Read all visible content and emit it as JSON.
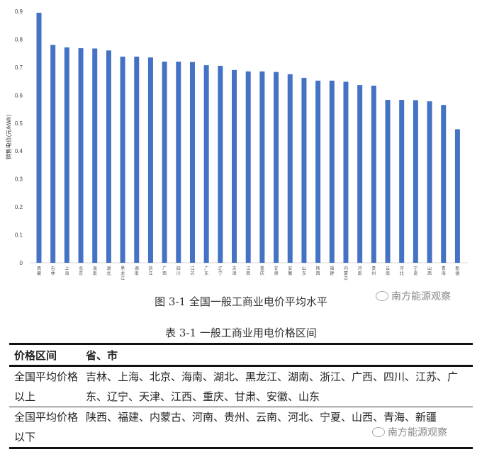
{
  "chart_data": {
    "type": "bar",
    "title": "",
    "xlabel": "",
    "ylabel": "销售电价(元/kWh)",
    "ylim": [
      0,
      0.9
    ],
    "yticks": [
      "0",
      "0.1",
      "0.2",
      "0.3",
      "0.4",
      "0.5",
      "0.6",
      "0.7",
      "0.8",
      "0.9"
    ],
    "grid": false,
    "color": "#4472c4",
    "categories": [
      "西藏",
      "吉林",
      "上海",
      "北京",
      "海南",
      "湖北",
      "黑龙江",
      "湖南",
      "浙江",
      "广西",
      "四川",
      "江苏",
      "广东",
      "辽宁",
      "天津",
      "江西",
      "重庆",
      "甘肃",
      "安徽",
      "山东",
      "陕西",
      "福建",
      "内蒙古",
      "河南",
      "贵州",
      "云南",
      "河北",
      "宁夏",
      "山西",
      "青海",
      "新疆"
    ],
    "values": [
      0.895,
      0.78,
      0.771,
      0.768,
      0.767,
      0.76,
      0.738,
      0.738,
      0.735,
      0.72,
      0.72,
      0.719,
      0.707,
      0.705,
      0.69,
      0.685,
      0.685,
      0.683,
      0.675,
      0.662,
      0.652,
      0.652,
      0.648,
      0.636,
      0.634,
      0.583,
      0.583,
      0.582,
      0.578,
      0.565,
      0.478
    ]
  },
  "figure_caption": "图 3-1 全国一般工商业电价平均水平",
  "watermark": "南方能源观察",
  "table": {
    "caption": "表 3-1 一般工商业用电价格区间",
    "headers": [
      "价格区间",
      "省、市"
    ],
    "rows": [
      {
        "range": "全国平均价格以上",
        "provinces": "吉林、上海、北京、海南、湖北、黑龙江、湖南、浙江、广西、四川、江苏、广东、辽宁、天津、江西、重庆、甘肃、安徽、山东"
      },
      {
        "range": "全国平均价格以下",
        "provinces": "陕西、福建、内蒙古、河南、贵州、云南、河北、宁夏、山西、青海、新疆"
      }
    ]
  }
}
